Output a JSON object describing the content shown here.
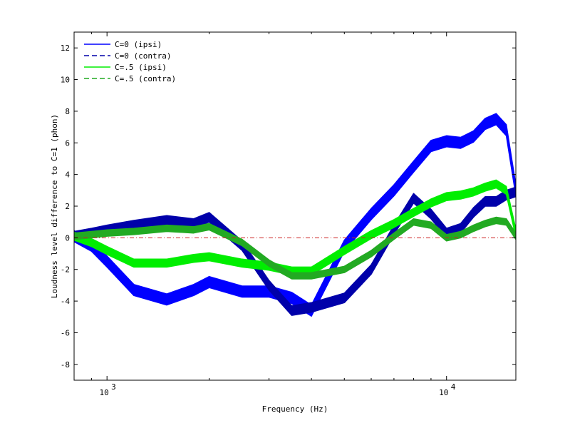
{
  "chart_data": {
    "type": "line",
    "title": "",
    "xlabel": "Frequency (Hz)",
    "ylabel": "Loudness level difference to C=1 (phon)",
    "xscale": "log",
    "xlim": [
      800,
      16000
    ],
    "ylim": [
      -9,
      13
    ],
    "xticks": [
      {
        "value": 1000,
        "base": "10",
        "exp": "3"
      },
      {
        "value": 10000,
        "base": "10",
        "exp": "4"
      }
    ],
    "yticks": [
      -8,
      -6,
      -4,
      -2,
      0,
      2,
      4,
      6,
      8,
      10,
      12
    ],
    "grid": false,
    "legend_position": "top-left",
    "reference_line": {
      "y": 0,
      "color": "#cc2222",
      "style": "dash-dot"
    },
    "series": [
      {
        "name": "C=0 (ipsi)",
        "color": "#0000ff",
        "style": "solid",
        "x": [
          800,
          900,
          1000,
          1200,
          1500,
          1800,
          2000,
          2500,
          3000,
          3500,
          4000,
          5000,
          6000,
          7000,
          8000,
          9000,
          10000,
          11000,
          12000,
          13000,
          14000,
          15000,
          16000
        ],
        "y": [
          0.1,
          -0.5,
          -1.5,
          -3.3,
          -3.9,
          -3.3,
          -2.8,
          -3.4,
          -3.4,
          -3.8,
          -4.6,
          -0.5,
          1.5,
          3.0,
          4.5,
          5.8,
          6.1,
          6.0,
          6.4,
          7.2,
          7.5,
          6.8,
          3.0
        ],
        "band": 0.35
      },
      {
        "name": "C=0 (contra)",
        "color": "#0000aa",
        "style": "dashed",
        "x": [
          800,
          900,
          1000,
          1200,
          1500,
          1800,
          2000,
          2500,
          3000,
          3500,
          4000,
          5000,
          6000,
          7000,
          8000,
          9000,
          10000,
          11000,
          12000,
          13000,
          14000,
          15000,
          16000
        ],
        "y": [
          0.1,
          0.3,
          0.5,
          0.8,
          1.1,
          0.9,
          1.3,
          -0.5,
          -3.0,
          -4.6,
          -4.4,
          -3.8,
          -2.0,
          0.5,
          2.5,
          1.5,
          0.3,
          0.6,
          1.6,
          2.3,
          2.3,
          2.7,
          2.9
        ],
        "band": 0.3
      },
      {
        "name": "C=.5 (ipsi)",
        "color": "#00ee00",
        "style": "solid",
        "x": [
          800,
          900,
          1000,
          1200,
          1500,
          1800,
          2000,
          2500,
          3000,
          3500,
          4000,
          5000,
          6000,
          7000,
          8000,
          9000,
          10000,
          11000,
          12000,
          13000,
          14000,
          15000,
          16000
        ],
        "y": [
          0.1,
          -0.3,
          -0.8,
          -1.6,
          -1.6,
          -1.3,
          -1.2,
          -1.6,
          -1.8,
          -2.1,
          -2.1,
          -0.8,
          0.2,
          0.9,
          1.6,
          2.2,
          2.6,
          2.7,
          2.9,
          3.2,
          3.4,
          3.0,
          0.3
        ],
        "band": 0.25
      },
      {
        "name": "C=.5 (contra)",
        "color": "#22aa22",
        "style": "dashed",
        "x": [
          800,
          900,
          1000,
          1200,
          1500,
          1800,
          2000,
          2500,
          3000,
          3500,
          4000,
          5000,
          6000,
          7000,
          8000,
          9000,
          10000,
          11000,
          12000,
          13000,
          14000,
          15000,
          16000
        ],
        "y": [
          0.1,
          0.2,
          0.3,
          0.4,
          0.6,
          0.5,
          0.7,
          -0.3,
          -1.6,
          -2.4,
          -2.4,
          -2.0,
          -1.0,
          0.1,
          1.0,
          0.8,
          0.0,
          0.2,
          0.6,
          0.9,
          1.1,
          1.0,
          0.1
        ],
        "band": 0.2
      }
    ]
  }
}
